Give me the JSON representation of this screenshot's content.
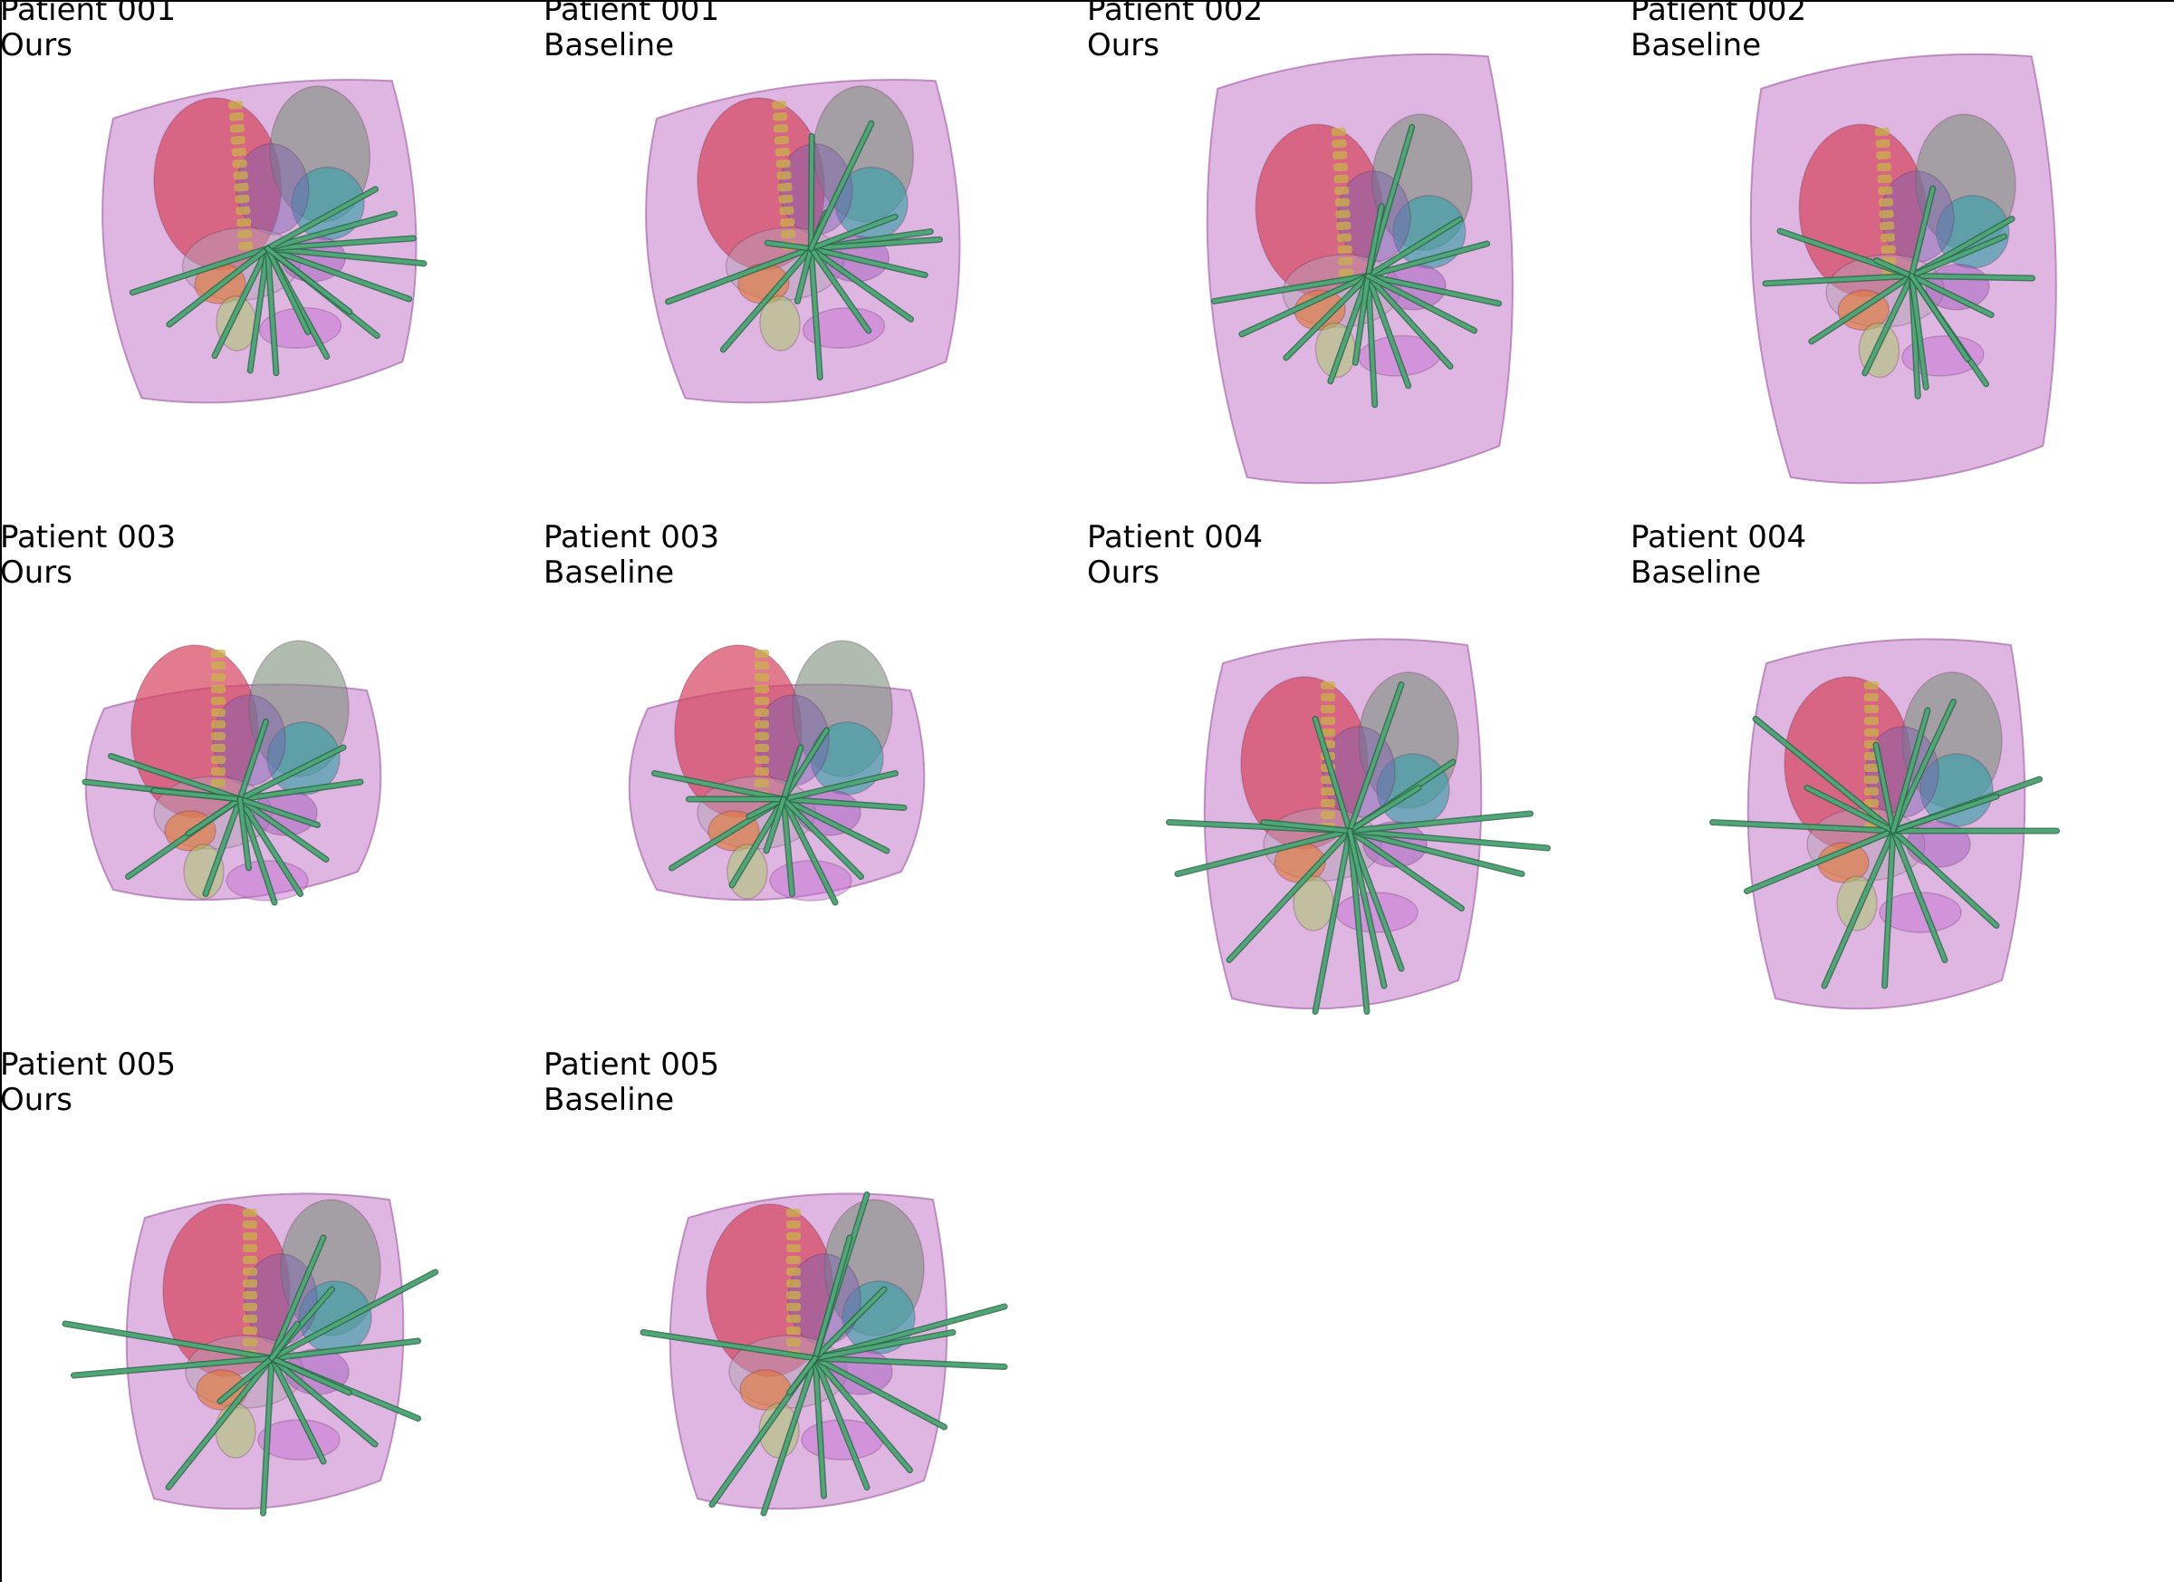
{
  "figure": {
    "panels": [
      {
        "patient": "Patient 001",
        "method": "Ours",
        "shape": "wide",
        "needles": [
          [
            -160,
            40
          ],
          [
            -70,
            120
          ],
          [
            -30,
            140
          ],
          [
            0,
            145
          ],
          [
            60,
            130
          ],
          [
            120,
            110
          ],
          [
            160,
            70
          ],
          [
            180,
            30
          ],
          [
            170,
            0
          ],
          [
            150,
            -30
          ],
          [
            130,
            -60
          ],
          [
            -120,
            80
          ],
          [
            40,
            100
          ],
          [
            90,
            80
          ]
        ]
      },
      {
        "patient": "Patient 001",
        "method": "Baseline",
        "shape": "wide",
        "needles": [
          [
            -170,
            50
          ],
          [
            -110,
            110
          ],
          [
            0,
            150
          ],
          [
            140,
            -10
          ],
          [
            150,
            0
          ],
          [
            130,
            40
          ],
          [
            110,
            90
          ],
          [
            -50,
            -10
          ],
          [
            20,
            -40
          ],
          [
            100,
            -30
          ],
          [
            -20,
            60
          ],
          [
            60,
            100
          ],
          [
            10,
            -130
          ],
          [
            80,
            -140
          ]
        ]
      },
      {
        "patient": "Patient 002",
        "method": "Ours",
        "shape": "tall",
        "needles": [
          [
            -180,
            20
          ],
          [
            -150,
            60
          ],
          [
            -100,
            90
          ],
          [
            -50,
            120
          ],
          [
            0,
            150
          ],
          [
            40,
            130
          ],
          [
            90,
            110
          ],
          [
            150,
            40
          ],
          [
            140,
            -30
          ],
          [
            110,
            -60
          ],
          [
            60,
            -170
          ],
          [
            20,
            -80
          ],
          [
            -20,
            100
          ],
          [
            120,
            70
          ]
        ]
      },
      {
        "patient": "Patient 002",
        "method": "Baseline",
        "shape": "tall",
        "needles": [
          [
            -170,
            0
          ],
          [
            -150,
            -60
          ],
          [
            -120,
            70
          ],
          [
            -60,
            110
          ],
          [
            0,
            140
          ],
          [
            10,
            130
          ],
          [
            80,
            130
          ],
          [
            140,
            10
          ],
          [
            120,
            -60
          ],
          [
            110,
            -40
          ],
          [
            90,
            50
          ],
          [
            -40,
            -20
          ],
          [
            30,
            -100
          ],
          [
            60,
            100
          ]
        ]
      },
      {
        "patient": "Patient 003",
        "method": "Ours",
        "shape": "round",
        "needles": [
          [
            -180,
            -20
          ],
          [
            -150,
            -50
          ],
          [
            -130,
            90
          ],
          [
            -40,
            110
          ],
          [
            40,
            120
          ],
          [
            70,
            110
          ],
          [
            100,
            70
          ],
          [
            140,
            -20
          ],
          [
            120,
            -60
          ],
          [
            30,
            -90
          ],
          [
            -60,
            40
          ],
          [
            -100,
            -10
          ],
          [
            90,
            30
          ],
          [
            10,
            80
          ]
        ]
      },
      {
        "patient": "Patient 003",
        "method": "Baseline",
        "shape": "round",
        "needles": [
          [
            -150,
            -30
          ],
          [
            -130,
            80
          ],
          [
            -60,
            100
          ],
          [
            10,
            110
          ],
          [
            60,
            120
          ],
          [
            120,
            60
          ],
          [
            140,
            10
          ],
          [
            130,
            -30
          ],
          [
            50,
            -80
          ],
          [
            -40,
            20
          ],
          [
            -110,
            0
          ],
          [
            20,
            -60
          ],
          [
            90,
            90
          ],
          [
            -20,
            60
          ]
        ]
      },
      {
        "patient": "Patient 004",
        "method": "Ours",
        "shape": "tall2",
        "needles": [
          [
            -210,
            -10
          ],
          [
            -200,
            50
          ],
          [
            -140,
            150
          ],
          [
            -40,
            210
          ],
          [
            20,
            210
          ],
          [
            60,
            160
          ],
          [
            130,
            90
          ],
          [
            200,
            50
          ],
          [
            230,
            20
          ],
          [
            210,
            -20
          ],
          [
            120,
            -80
          ],
          [
            80,
            -50
          ],
          [
            -40,
            -130
          ],
          [
            60,
            -170
          ],
          [
            -100,
            -10
          ],
          [
            40,
            180
          ]
        ]
      },
      {
        "patient": "Patient 004",
        "method": "Baseline",
        "shape": "tall2",
        "needles": [
          [
            -210,
            -10
          ],
          [
            -170,
            70
          ],
          [
            -80,
            180
          ],
          [
            -10,
            180
          ],
          [
            60,
            150
          ],
          [
            120,
            110
          ],
          [
            190,
            0
          ],
          [
            170,
            -60
          ],
          [
            120,
            -40
          ],
          [
            70,
            -150
          ],
          [
            -160,
            -130
          ],
          [
            -100,
            -50
          ],
          [
            -20,
            -100
          ],
          [
            40,
            -140
          ]
        ]
      },
      {
        "patient": "Patient 005",
        "method": "Ours",
        "shape": "round2",
        "needles": [
          [
            -240,
            -40
          ],
          [
            -230,
            20
          ],
          [
            -120,
            150
          ],
          [
            -10,
            180
          ],
          [
            60,
            120
          ],
          [
            120,
            100
          ],
          [
            170,
            70
          ],
          [
            170,
            -20
          ],
          [
            190,
            -100
          ],
          [
            70,
            -80
          ],
          [
            60,
            -140
          ],
          [
            90,
            40
          ],
          [
            -60,
            50
          ],
          [
            30,
            -40
          ]
        ]
      },
      {
        "patient": "Patient 005",
        "method": "Baseline",
        "shape": "round2",
        "needles": [
          [
            -200,
            -30
          ],
          [
            -120,
            170
          ],
          [
            -60,
            180
          ],
          [
            10,
            160
          ],
          [
            60,
            150
          ],
          [
            110,
            130
          ],
          [
            150,
            80
          ],
          [
            220,
            10
          ],
          [
            220,
            -60
          ],
          [
            160,
            -30
          ],
          [
            80,
            -80
          ],
          [
            60,
            -190
          ],
          [
            40,
            -140
          ],
          [
            -30,
            40
          ]
        ]
      }
    ]
  },
  "colors": {
    "body": "#c47ac8",
    "body_edge": "#9e58a3",
    "organ_red": "#d4435c",
    "organ_teal": "#3aa0a8",
    "organ_gray": "#7d8f7d",
    "organ_orange": "#e07a3a",
    "organ_yellow": "#c9b24a",
    "organ_purple": "#7b5fb0",
    "needle": "#4fa677",
    "needle_edge": "#2c6c49"
  }
}
